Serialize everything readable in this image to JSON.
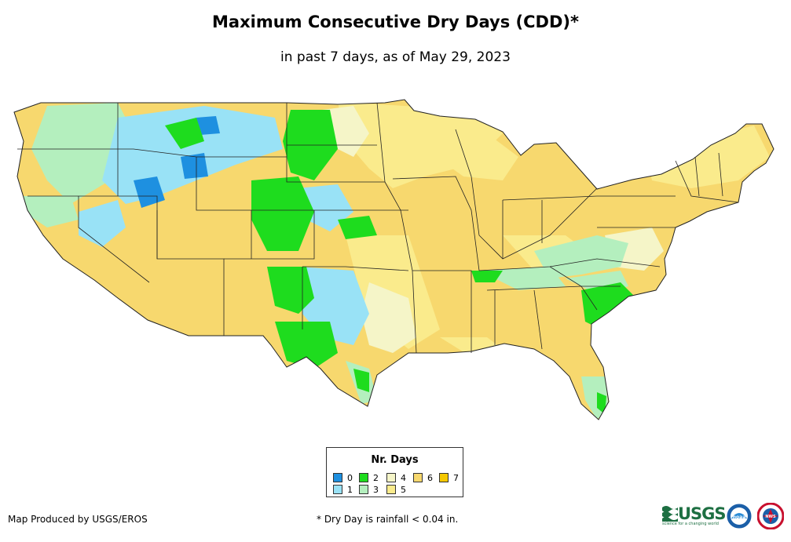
{
  "title": "Maximum Consecutive Dry Days (CDD)*",
  "subtitle": "in past 7 days, as of May 29, 2023",
  "legend": {
    "title": "Nr. Days",
    "items": [
      {
        "label": "0",
        "color": "#1e90e0"
      },
      {
        "label": "1",
        "color": "#99e2f6"
      },
      {
        "label": "2",
        "color": "#1edc1e"
      },
      {
        "label": "3",
        "color": "#b4efbe"
      },
      {
        "label": "4",
        "color": "#f5f5c8"
      },
      {
        "label": "5",
        "color": "#faeb8c"
      },
      {
        "label": "6",
        "color": "#f7d86e"
      },
      {
        "label": "7",
        "color": "#f5c800"
      }
    ]
  },
  "credit": "Map Produced by USGS/EROS",
  "footnote": "* Dry Day is rainfall < 0.04 in.",
  "logos": {
    "usgs_text": "USGS",
    "usgs_tagline": "science for a changing world",
    "noaa_text": "noaa",
    "nws_text": "NWS"
  }
}
